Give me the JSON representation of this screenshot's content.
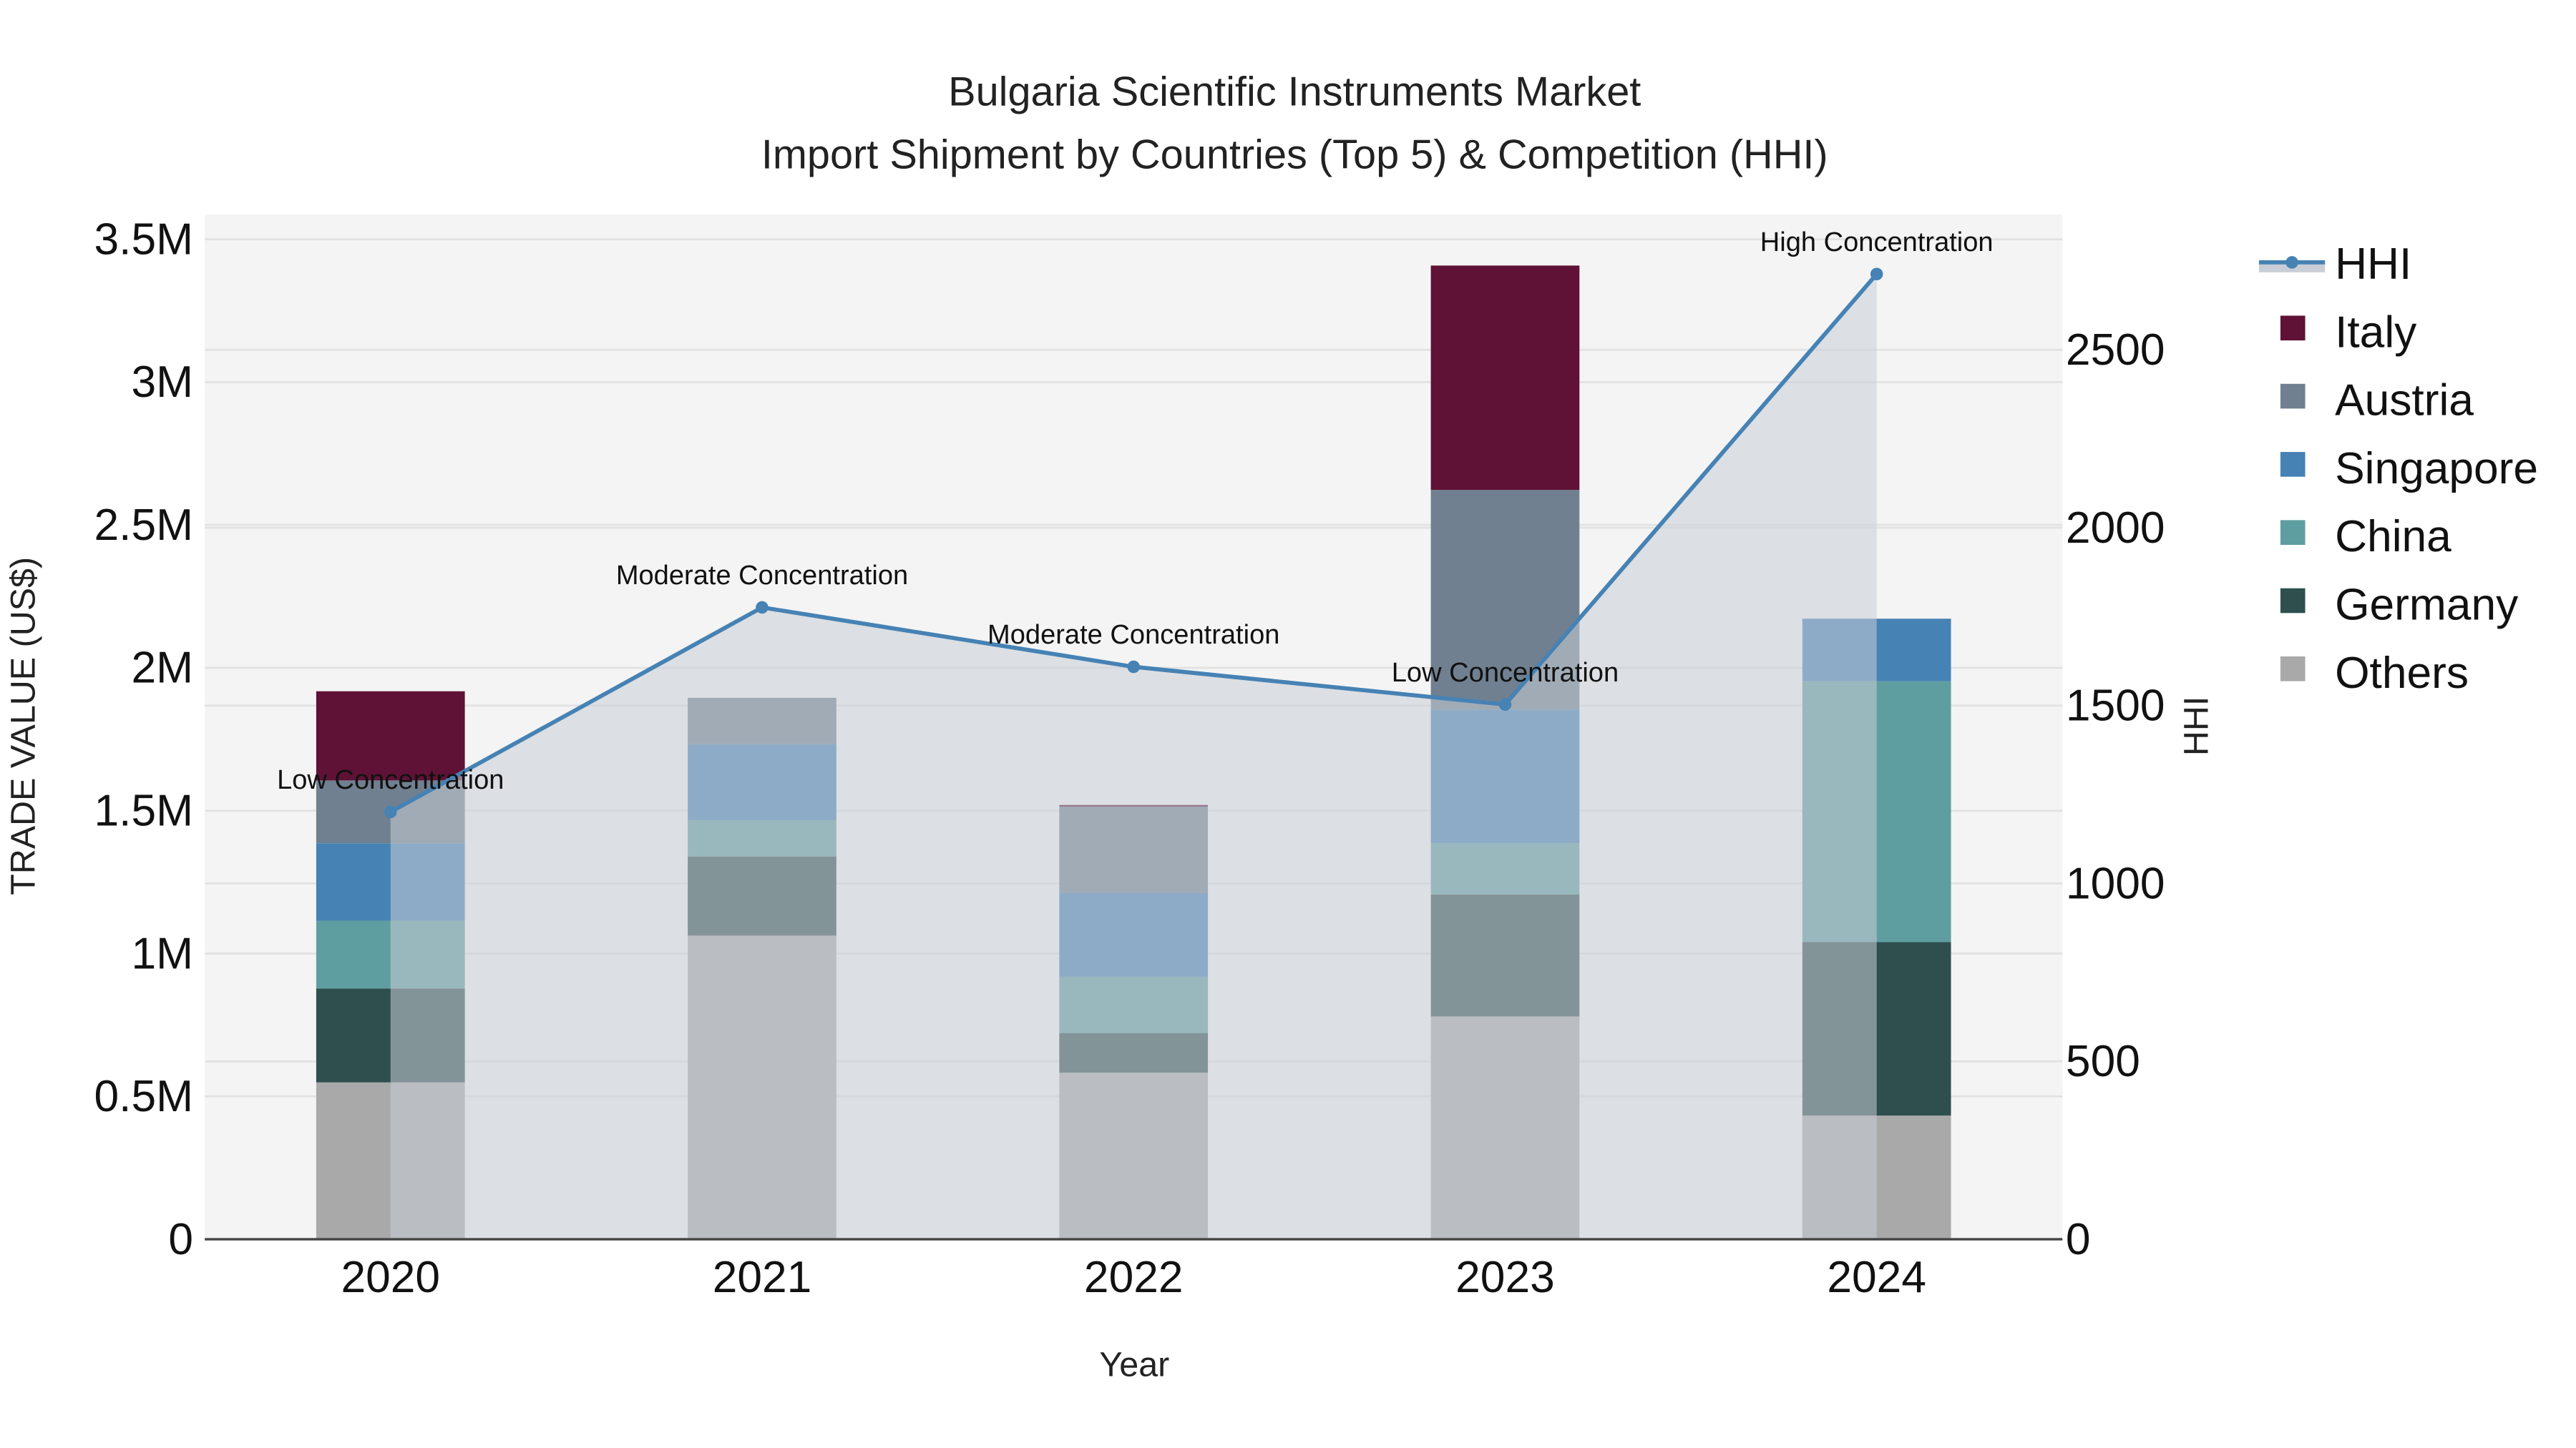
{
  "chart_data": {
    "type": "bar",
    "stacked": true,
    "title": "Bulgaria Scientific Instruments Market",
    "subtitle": "Import Shipment by Countries (Top 5) & Competition (HHI)",
    "xlabel": "Year",
    "ylabel": "TRADE VALUE (US$)",
    "y2label": "HHI",
    "categories": [
      "2020",
      "2021",
      "2022",
      "2023",
      "2024"
    ],
    "ylim": [
      0,
      3500000
    ],
    "y2lim": [
      0,
      2810
    ],
    "yticks": [
      "0",
      "0.5M",
      "1M",
      "1.5M",
      "2M",
      "2.5M",
      "3M",
      "3.5M"
    ],
    "ytick_values": [
      0,
      500000,
      1000000,
      1500000,
      2000000,
      2500000,
      3000000,
      3500000
    ],
    "y2ticks": [
      "0",
      "500",
      "1000",
      "1500",
      "2000",
      "2500"
    ],
    "y2tick_values": [
      0,
      500,
      1000,
      1500,
      2000,
      2500
    ],
    "grid": true,
    "legend_position": "right",
    "series": [
      {
        "name": "Others",
        "color": "#A9A9A9",
        "values": [
          549000,
          1063000,
          583000,
          780000,
          433000
        ]
      },
      {
        "name": "Germany",
        "color": "#2F4F4F",
        "values": [
          329000,
          277000,
          139000,
          427000,
          607000
        ]
      },
      {
        "name": "China",
        "color": "#5F9EA0",
        "values": [
          237000,
          127000,
          197000,
          179000,
          913000
        ]
      },
      {
        "name": "Singapore",
        "color": "#4682B4",
        "values": [
          271000,
          266000,
          294000,
          468000,
          219000
        ]
      },
      {
        "name": "Austria",
        "color": "#708090",
        "values": [
          220000,
          162000,
          301000,
          769000,
          0
        ]
      },
      {
        "name": "Italy",
        "color": "#5F1235",
        "values": [
          312000,
          0,
          6000,
          785000,
          0
        ]
      }
    ],
    "line_series": {
      "name": "HHI",
      "axis": "y2",
      "color": "#4682B4",
      "fill_color": "#C8CDD6",
      "values": [
        1201,
        1776,
        1609,
        1503,
        2713
      ]
    },
    "annotations": [
      {
        "x": "2020",
        "text": "Low Concentration"
      },
      {
        "x": "2021",
        "text": "Moderate Concentration"
      },
      {
        "x": "2022",
        "text": "Moderate Concentration"
      },
      {
        "x": "2023",
        "text": "Low Concentration"
      },
      {
        "x": "2024",
        "text": "High Concentration"
      }
    ]
  },
  "legend": {
    "items": [
      {
        "label": "HHI",
        "color": "#4682B4",
        "kind": "line"
      },
      {
        "label": "Italy",
        "color": "#5F1235",
        "kind": "box"
      },
      {
        "label": "Austria",
        "color": "#708090",
        "kind": "box"
      },
      {
        "label": "Singapore",
        "color": "#4682B4",
        "kind": "box"
      },
      {
        "label": "China",
        "color": "#5F9EA0",
        "kind": "box"
      },
      {
        "label": "Germany",
        "color": "#2F4F4F",
        "kind": "box"
      },
      {
        "label": "Others",
        "color": "#A9A9A9",
        "kind": "box"
      }
    ]
  },
  "colors": {
    "plot_bg": "#F4F4F4",
    "grid": "#E2E2E2",
    "axis_line": "#444444"
  }
}
